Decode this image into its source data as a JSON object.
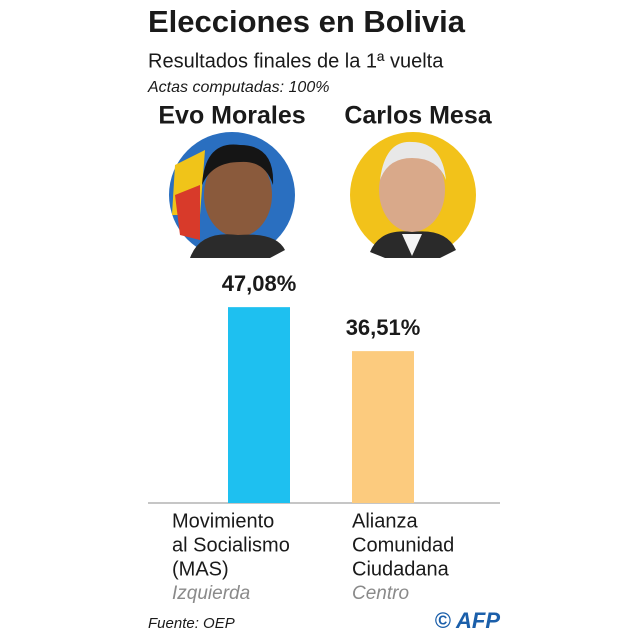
{
  "chart_data": {
    "type": "bar",
    "title": "Elecciones en Bolivia",
    "subtitle": "Resultados finales de la 1ª vuelta",
    "note": "Actas computadas: 100%",
    "categories": [
      "Evo Morales",
      "Carlos Mesa"
    ],
    "values": [
      47.08,
      36.51
    ],
    "value_labels": [
      "47,08%",
      "36,51%"
    ],
    "colors": [
      "#1ec0f0",
      "#fccb7e"
    ],
    "parties": [
      [
        "Movimiento",
        "al Socialismo",
        "(MAS)"
      ],
      [
        "Alianza",
        "Comunidad",
        "Ciudadana"
      ]
    ],
    "ideology": [
      "Izquierda",
      "Centro"
    ],
    "source": "Fuente: OEP",
    "credit": "© AFP"
  }
}
